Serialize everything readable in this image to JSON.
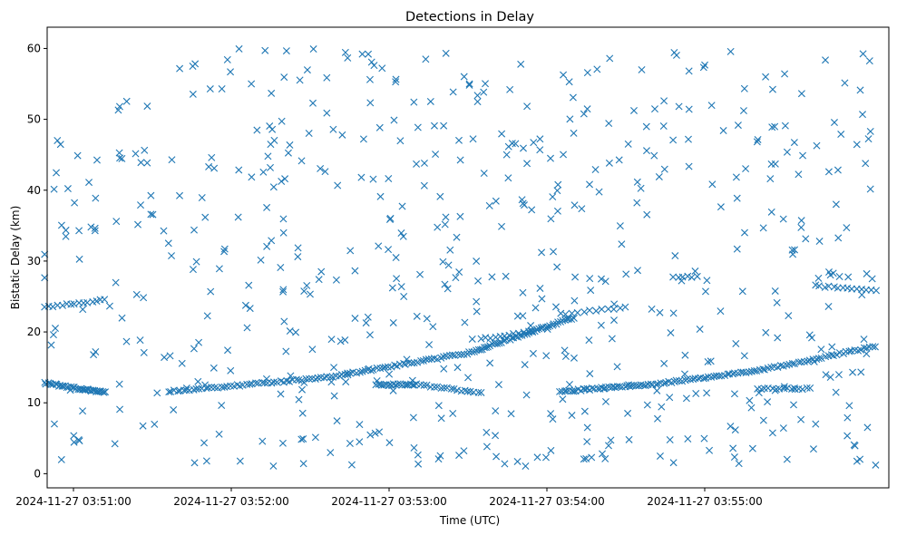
{
  "chart_data": {
    "type": "scatter",
    "title": "Detections in Delay",
    "xlabel": "Time (UTC)",
    "ylabel": "Bistatic Delay (km)",
    "x_ticks": [
      "2024-11-27 03:51:00",
      "2024-11-27 03:52:00",
      "2024-11-27 03:53:00",
      "2024-11-27 03:54:00",
      "2024-11-27 03:55:00"
    ],
    "y_ticks": [
      0,
      10,
      20,
      30,
      40,
      50,
      60
    ],
    "xlim": [
      "2024-11-27 03:50:50",
      "2024-11-27 03:56:10"
    ],
    "ylim": [
      -2,
      63
    ],
    "marker": "x",
    "color": "#1f77b4",
    "grid": false,
    "tracks": [
      {
        "x": [
          "2024-11-27 03:50:49",
          "2024-11-27 03:51:02",
          "2024-11-27 03:51:12"
        ],
        "y": [
          12.8,
          12.0,
          11.5
        ],
        "count": 40
      },
      {
        "x": [
          "2024-11-27 03:50:49",
          "2024-11-27 03:51:12"
        ],
        "y": [
          23.5,
          24.5
        ],
        "count": 15
      },
      {
        "x": [
          "2024-11-27 03:51:36",
          "2024-11-27 03:52:35",
          "2024-11-27 03:53:30",
          "2024-11-27 03:54:10"
        ],
        "y": [
          11.6,
          13.5,
          17.0,
          22.0
        ],
        "count": 150
      },
      {
        "x": [
          "2024-11-27 03:52:55",
          "2024-11-27 03:53:10",
          "2024-11-27 03:53:35"
        ],
        "y": [
          12.5,
          12.6,
          11.4
        ],
        "count": 40
      },
      {
        "x": [
          "2024-11-27 03:53:35",
          "2024-11-27 03:54:00"
        ],
        "y": [
          19.0,
          20.5
        ],
        "count": 15
      },
      {
        "x": [
          "2024-11-27 03:54:05",
          "2024-11-27 03:54:30"
        ],
        "y": [
          22.5,
          23.5
        ],
        "count": 12
      },
      {
        "x": [
          "2024-11-27 03:54:05",
          "2024-11-27 03:54:40",
          "2024-11-27 03:55:20",
          "2024-11-27 03:56:05"
        ],
        "y": [
          11.6,
          12.6,
          14.5,
          18.0
        ],
        "count": 120
      },
      {
        "x": [
          "2024-11-27 03:55:20",
          "2024-11-27 03:55:40"
        ],
        "y": [
          12.0,
          12.0
        ],
        "count": 15
      },
      {
        "x": [
          "2024-11-27 03:54:48",
          "2024-11-27 03:54:57"
        ],
        "y": [
          27.8,
          27.8
        ],
        "count": 6
      },
      {
        "x": [
          "2024-11-27 03:55:42",
          "2024-11-27 03:56:05"
        ],
        "y": [
          26.5,
          25.8
        ],
        "count": 14
      }
    ],
    "clutter": {
      "count": 600,
      "x_range": [
        "2024-11-27 03:50:49",
        "2024-11-27 03:56:05"
      ],
      "y_range": [
        1,
        60
      ]
    }
  }
}
